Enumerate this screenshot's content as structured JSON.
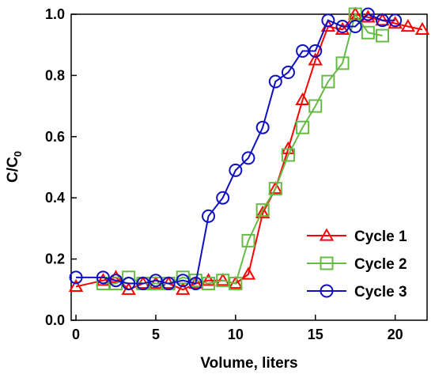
{
  "chart_data": {
    "type": "line",
    "xlabel": "Volume, liters",
    "ylabel": "C/C",
    "ylabel_subscript": "0",
    "xlim": [
      -0.3,
      22
    ],
    "ylim": [
      0,
      1.0
    ],
    "x_ticks": [
      0,
      5,
      10,
      15,
      20
    ],
    "y_ticks": [
      0.0,
      0.2,
      0.4,
      0.6,
      0.8,
      1.0
    ],
    "x_tick_labels": [
      "0",
      "5",
      "10",
      "15",
      "20"
    ],
    "y_tick_labels": [
      "0.0",
      "0.2",
      "0.4",
      "0.6",
      "0.8",
      "1.0"
    ],
    "grid": false,
    "legend_position": "bottom-right",
    "series": [
      {
        "name": "Cycle 1",
        "color": "#ff0000",
        "marker": "triangle",
        "x": [
          0,
          1.7,
          2.5,
          3.3,
          4.2,
          5.0,
          5.8,
          6.7,
          7.5,
          8.3,
          9.2,
          10.0,
          10.8,
          11.7,
          12.5,
          13.3,
          14.2,
          15.0,
          15.8,
          16.7,
          17.5,
          18.3,
          19.2,
          20.0,
          20.8,
          21.7
        ],
        "y": [
          0.11,
          0.13,
          0.14,
          0.1,
          0.12,
          0.12,
          0.12,
          0.1,
          0.12,
          0.13,
          0.13,
          0.12,
          0.15,
          0.35,
          0.43,
          0.56,
          0.72,
          0.85,
          0.96,
          0.95,
          1.0,
          0.99,
          0.98,
          0.97,
          0.96,
          0.95
        ]
      },
      {
        "name": "Cycle 2",
        "color": "#66bb44",
        "marker": "square",
        "x": [
          1.7,
          2.5,
          3.3,
          4.2,
          5.0,
          5.8,
          6.7,
          7.5,
          8.3,
          9.2,
          10.0,
          10.8,
          11.7,
          12.5,
          13.3,
          14.2,
          15.0,
          15.8,
          16.7,
          17.5,
          18.3,
          19.2
        ],
        "y": [
          0.12,
          0.12,
          0.14,
          0.12,
          0.12,
          0.12,
          0.14,
          0.13,
          0.12,
          0.13,
          0.12,
          0.26,
          0.36,
          0.43,
          0.54,
          0.63,
          0.7,
          0.78,
          0.84,
          1.0,
          0.94,
          0.93
        ]
      },
      {
        "name": "Cycle 3",
        "color": "#1010c0",
        "marker": "circle",
        "x": [
          0,
          1.7,
          2.5,
          3.3,
          4.2,
          5.0,
          5.8,
          6.7,
          7.5,
          8.3,
          9.2,
          10.0,
          10.8,
          11.7,
          12.5,
          13.3,
          14.2,
          15.0,
          15.8,
          16.7,
          17.5,
          18.3,
          19.2,
          20.0
        ],
        "y": [
          0.14,
          0.14,
          0.13,
          0.12,
          0.12,
          0.13,
          0.12,
          0.13,
          0.12,
          0.34,
          0.4,
          0.49,
          0.53,
          0.63,
          0.78,
          0.81,
          0.88,
          0.88,
          0.98,
          0.96,
          0.96,
          1.0,
          0.98,
          0.98
        ]
      }
    ]
  }
}
